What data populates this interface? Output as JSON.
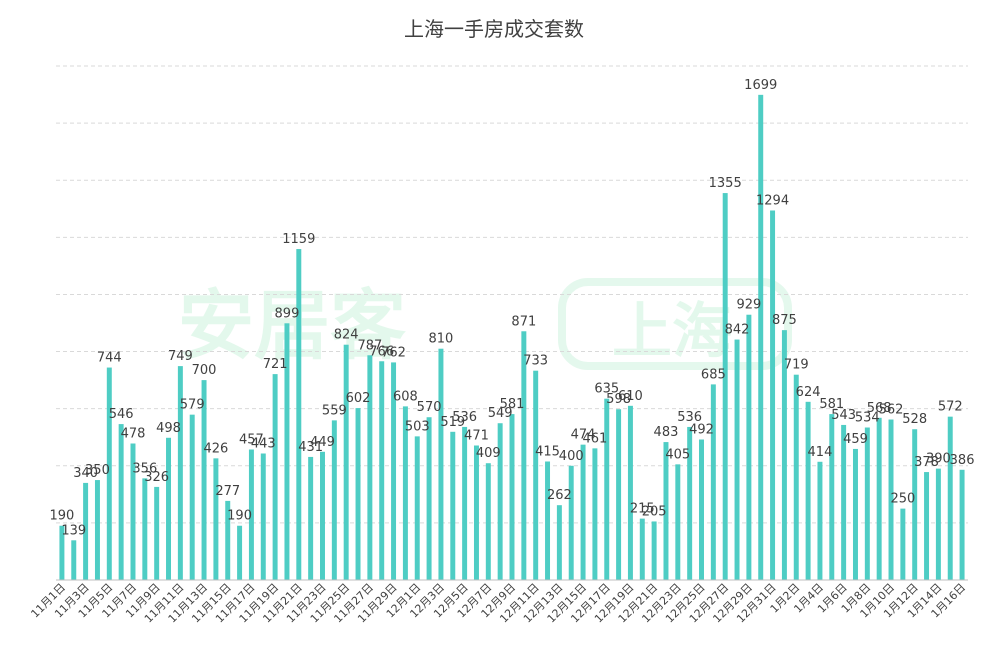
{
  "colors": {
    "bar": "#4ECDC4",
    "grid": "#d9d9d9",
    "text": "#404040"
  },
  "watermark": {
    "brand": "安居客",
    "city": "上海"
  },
  "chart_data": {
    "type": "bar",
    "title": "上海一手房成交套数",
    "xlabel": "",
    "ylabel": "",
    "ylim": [
      0,
      1800
    ],
    "grid": true,
    "legend": "none",
    "tick_labels": [
      "11月1日",
      "11月3日",
      "11月5日",
      "11月7日",
      "11月9日",
      "11月11日",
      "11月13日",
      "11月15日",
      "11月17日",
      "11月19日",
      "11月21日",
      "11月23日",
      "11月25日",
      "11月27日",
      "11月29日",
      "12月1日",
      "12月3日",
      "12月5日",
      "12月7日",
      "12月9日",
      "12月11日",
      "12月13日",
      "12月15日",
      "12月17日",
      "12月19日",
      "12月21日",
      "12月23日",
      "12月25日",
      "12月27日",
      "12月29日",
      "12月31日",
      "1月2日",
      "1月4日",
      "1月6日",
      "1月8日",
      "1月10日",
      "1月12日",
      "1月14日",
      "1月16日"
    ],
    "values": [
      190,
      139,
      340,
      350,
      744,
      546,
      478,
      356,
      326,
      498,
      749,
      579,
      700,
      426,
      277,
      190,
      457,
      443,
      721,
      899,
      1159,
      431,
      449,
      559,
      824,
      602,
      787,
      766,
      762,
      608,
      503,
      570,
      810,
      519,
      536,
      471,
      409,
      549,
      581,
      871,
      733,
      415,
      262,
      400,
      474,
      461,
      635,
      598,
      610,
      215,
      205,
      483,
      405,
      536,
      492,
      685,
      1355,
      842,
      929,
      1699,
      1294,
      875,
      719,
      624,
      414,
      581,
      543,
      459,
      534,
      568,
      562,
      250,
      528,
      378,
      390,
      572,
      386
    ]
  }
}
